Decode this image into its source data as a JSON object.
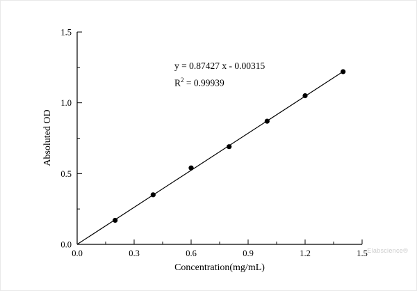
{
  "watermark": "Elabscience®",
  "chart_data": {
    "type": "scatter",
    "title": "",
    "xlabel": "Concentration(mg/mL)",
    "ylabel": "Absoluted OD",
    "xlim": [
      0.0,
      1.5
    ],
    "ylim": [
      0.0,
      1.5
    ],
    "grid": false,
    "legend_position": "none",
    "x_ticks": [
      0.0,
      0.3,
      0.6,
      0.9,
      1.2,
      1.5
    ],
    "x_tick_labels": [
      "0.0",
      "0.3",
      "0.6",
      "0.9",
      "1.2",
      "1.5"
    ],
    "y_ticks": [
      0.0,
      0.5,
      1.0,
      1.5
    ],
    "y_tick_labels": [
      "0.0",
      "0.5",
      "1.0",
      "1.5"
    ],
    "x_minor_ticks": [
      0.15,
      0.45,
      0.75,
      1.05,
      1.35
    ],
    "y_minor_ticks": [
      0.25,
      0.75,
      1.25
    ],
    "series": [
      {
        "name": "standard-points",
        "type": "scatter",
        "marker": "filled-circle",
        "color": "#000000",
        "x": [
          0.2,
          0.4,
          0.6,
          0.8,
          1.0,
          1.2,
          1.4
        ],
        "y": [
          0.17,
          0.35,
          0.54,
          0.69,
          0.87,
          1.05,
          1.22
        ]
      }
    ],
    "fit_line": {
      "slope": 0.87427,
      "intercept": -0.00315,
      "x_start": 0.0,
      "x_end": 1.4,
      "color": "#000000"
    },
    "equation_label": "y = 0.87427 x - 0.00315",
    "r2_base": "R",
    "r2_sup": "2",
    "r2_rest": " = 0.99939"
  }
}
